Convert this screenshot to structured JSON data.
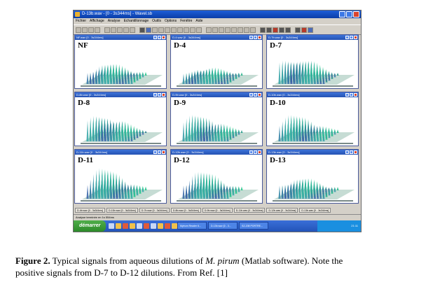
{
  "window": {
    "title": "D-13b.wav - [0 - 3s344ms] - Wavel.sb",
    "menu": [
      "Fichier",
      "Affichage",
      "Analyse",
      "Echantillonnage",
      "Outils",
      "Options",
      "Fenêtre",
      "Aide"
    ]
  },
  "children": [
    {
      "title": "NF.wav [0 - 3s344ms]",
      "label": "NF",
      "color": "#3a8a8a"
    },
    {
      "title": "D-4.wav [0 - 3s344ms]",
      "label": "D-4",
      "color": "#3a8a8a"
    },
    {
      "title": "D-7b.wav [0 - 3s344ms]",
      "label": "D-7",
      "color": "#3a8a8a"
    },
    {
      "title": "D-8b.wav [0 - 3s344ms]",
      "label": "D-8",
      "color": "#3a8a8a"
    },
    {
      "title": "D-9b.wav [0 - 3s344ms]",
      "label": "D-9",
      "color": "#3a8a8a"
    },
    {
      "title": "D-10b.wav [0 - 3s344ms]",
      "label": "D-10",
      "color": "#3a8a8a"
    },
    {
      "title": "D-11b.wav [0 - 3s344ms]",
      "label": "D-11",
      "color": "#3a8a8a"
    },
    {
      "title": "D-12b.wav [0 - 3s344ms]",
      "label": "D-12",
      "color": "#3a8a8a"
    },
    {
      "title": "D-13b.wav [0 - 3s344ms]",
      "label": "D-13",
      "color": "#3a8a8a"
    }
  ],
  "tabs": [
    "D-4b.wav [0 - 3s344ms]",
    "D-10b.wav [0 - 3s344ms]",
    "D-7b.wav [0 - 3s344ms]",
    "D-8b.wav [0 - 3s344ms]",
    "D-9b.wav [0 - 3s344ms]",
    "D-11b.wav [0 - 3s344ms]",
    "D-12b.wav [0 - 3s344ms]",
    "D-13b.wav [0 - 3s344ms]"
  ],
  "status": "Analyse terminée en 1s 554ms",
  "taskbar": {
    "start": "démarrer",
    "tasks": [
      "Mytrum Reader 6...",
      "D-13b.wav [0 - 3...",
      "SZ-208 PORTRE..."
    ],
    "clock": "21:11"
  },
  "caption": {
    "label": "Figure 2.",
    "text_1": " Typical signals from aqueous dilutions of ",
    "species": "M. pirum",
    "text_2": " (Matlab software). Note the",
    "line_2": "positive signals from D-7 to D-12 dilutions. From Ref. [1]"
  }
}
